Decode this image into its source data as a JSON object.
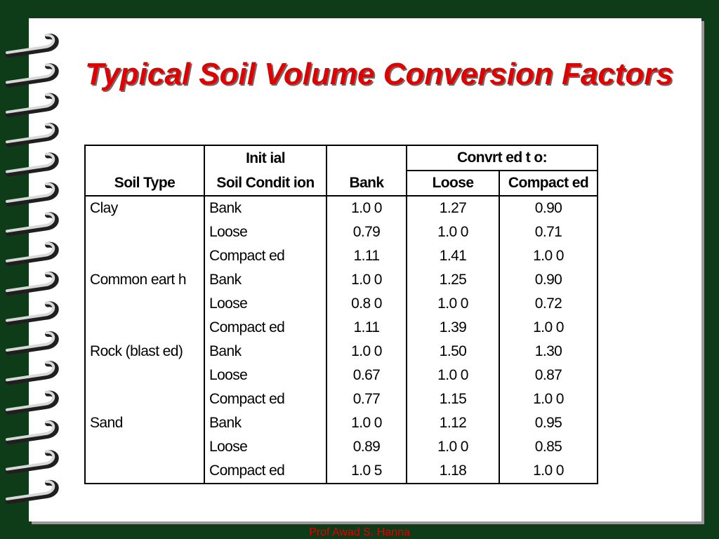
{
  "slide": {
    "title": "Typical Soil Volume Conversion Factors",
    "footer": "Prof Awad S. Hanna",
    "colors": {
      "background": "#0e3b18",
      "title": "#e00000",
      "page": "#ffffff"
    }
  },
  "table": {
    "header": {
      "soil_type": "Soil Type",
      "initial_line1": "Init ial",
      "initial_line2": "Soil Condit ion",
      "bank": "Bank",
      "converted_to": "Convrt ed t o:",
      "loose": "Loose",
      "compacted": "Compact ed"
    },
    "rows": [
      {
        "type": "Clay",
        "condition": "Bank",
        "bank": "1.0 0",
        "loose": "1.27",
        "compacted": "0.90"
      },
      {
        "type": "",
        "condition": "Loose",
        "bank": "0.79",
        "loose": "1.0 0",
        "compacted": "0.71"
      },
      {
        "type": "",
        "condition": "Compact ed",
        "bank": "1.11",
        "loose": "1.41",
        "compacted": "1.0 0"
      },
      {
        "type": "Common eart h",
        "condition": "Bank",
        "bank": "1.0 0",
        "loose": "1.25",
        "compacted": "0.90"
      },
      {
        "type": "",
        "condition": "Loose",
        "bank": "0.8 0",
        "loose": "1.0 0",
        "compacted": "0.72"
      },
      {
        "type": "",
        "condition": "Compact ed",
        "bank": "1.11",
        "loose": "1.39",
        "compacted": "1.0 0"
      },
      {
        "type": "Rock (blast ed)",
        "condition": "Bank",
        "bank": "1.0 0",
        "loose": "1.50",
        "compacted": "1.30"
      },
      {
        "type": "",
        "condition": "Loose",
        "bank": "0.67",
        "loose": "1.0 0",
        "compacted": "0.87"
      },
      {
        "type": "",
        "condition": "Compact ed",
        "bank": "0.77",
        "loose": "1.15",
        "compacted": "1.0 0"
      },
      {
        "type": "Sand",
        "condition": "Bank",
        "bank": "1.0 0",
        "loose": "1.12",
        "compacted": "0.95"
      },
      {
        "type": "",
        "condition": "Loose",
        "bank": "0.89",
        "loose": "1.0 0",
        "compacted": "0.85"
      },
      {
        "type": "",
        "condition": "Compact ed",
        "bank": "1.0 5",
        "loose": "1.18",
        "compacted": "1.0 0"
      }
    ]
  }
}
